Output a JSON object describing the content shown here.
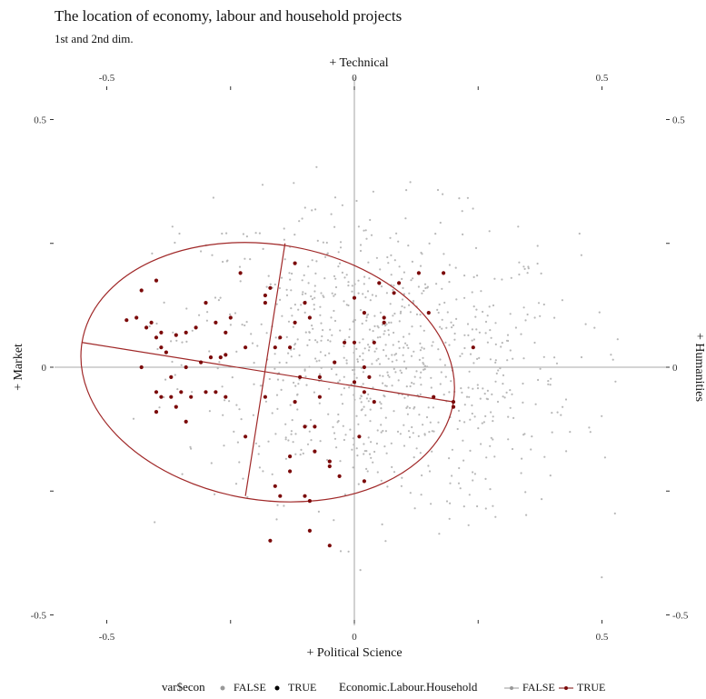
{
  "title": "The location of economy, labour and household projects",
  "subtitle": "1st and 2nd dim.",
  "legend": {
    "var_title": "var$econ",
    "var_items": [
      "FALSE",
      "TRUE"
    ],
    "ellipse_title": "Economic.Labour.Household",
    "ellipse_items": [
      "FALSE",
      "TRUE"
    ]
  },
  "colors": {
    "false_points": "#b8b8b8",
    "true_points": "#7b0a0a",
    "ellipse": "#a02828",
    "axis": "#8c8c8c"
  },
  "chart_data": {
    "type": "scatter",
    "title": "The location of economy, labour and household projects",
    "subtitle": "1st and 2nd dim.",
    "xlabel_bottom": "+ Political Science",
    "xlabel_top": "+ Technical",
    "ylabel_left": "+ Market",
    "ylabel_right": "+ Humanities",
    "xlim": [
      -0.55,
      0.6
    ],
    "ylim": [
      -0.52,
      0.52
    ],
    "x_ticks": [
      -0.5,
      -0.25,
      0,
      0.25,
      0.5
    ],
    "x_tick_labels": [
      "-0.5",
      "",
      "0",
      "",
      "0.5"
    ],
    "y_ticks": [
      -0.5,
      -0.25,
      0,
      0.25,
      0.5
    ],
    "y_tick_labels": [
      "-0.5",
      "",
      "0",
      "",
      "0.5"
    ],
    "grid": false,
    "legend_position": "bottom",
    "series": [
      {
        "name": "FALSE",
        "note_count": 900,
        "x_mean": 0.05,
        "y_mean": 0.05,
        "x_sd": 0.2,
        "y_sd": 0.15
      },
      {
        "name": "TRUE",
        "points": [
          [
            -0.43,
            0.155
          ],
          [
            -0.4,
            0.175
          ],
          [
            -0.46,
            0.095
          ],
          [
            -0.44,
            0.1
          ],
          [
            -0.42,
            0.08
          ],
          [
            -0.41,
            0.09
          ],
          [
            -0.39,
            0.07
          ],
          [
            -0.4,
            0.06
          ],
          [
            -0.39,
            0.04
          ],
          [
            -0.36,
            0.065
          ],
          [
            -0.34,
            0.07
          ],
          [
            -0.32,
            0.08
          ],
          [
            -0.3,
            0.13
          ],
          [
            -0.28,
            0.09
          ],
          [
            -0.26,
            0.07
          ],
          [
            -0.25,
            0.1
          ],
          [
            -0.23,
            0.19
          ],
          [
            -0.18,
            0.145
          ],
          [
            -0.18,
            0.13
          ],
          [
            -0.17,
            0.16
          ],
          [
            -0.12,
            0.21
          ],
          [
            -0.1,
            0.13
          ],
          [
            -0.12,
            0.09
          ],
          [
            -0.09,
            0.1
          ],
          [
            -0.15,
            0.06
          ],
          [
            -0.13,
            0.04
          ],
          [
            -0.16,
            0.04
          ],
          [
            -0.22,
            0.04
          ],
          [
            -0.26,
            0.025
          ],
          [
            -0.27,
            0.02
          ],
          [
            -0.29,
            0.02
          ],
          [
            -0.31,
            0.01
          ],
          [
            -0.38,
            0.03
          ],
          [
            -0.34,
            0.0
          ],
          [
            -0.37,
            -0.02
          ],
          [
            -0.4,
            -0.05
          ],
          [
            -0.39,
            -0.06
          ],
          [
            -0.37,
            -0.06
          ],
          [
            -0.35,
            -0.05
          ],
          [
            -0.33,
            -0.06
          ],
          [
            -0.3,
            -0.05
          ],
          [
            -0.28,
            -0.05
          ],
          [
            -0.26,
            -0.06
          ],
          [
            -0.4,
            -0.09
          ],
          [
            -0.36,
            -0.08
          ],
          [
            -0.34,
            -0.11
          ],
          [
            -0.43,
            0.0
          ],
          [
            -0.12,
            -0.07
          ],
          [
            -0.18,
            -0.06
          ],
          [
            -0.08,
            -0.12
          ],
          [
            -0.1,
            -0.12
          ],
          [
            -0.07,
            -0.06
          ],
          [
            -0.11,
            -0.02
          ],
          [
            -0.04,
            0.01
          ],
          [
            -0.07,
            -0.02
          ],
          [
            0.0,
            -0.03
          ],
          [
            0.03,
            -0.02
          ],
          [
            0.02,
            -0.05
          ],
          [
            0.04,
            -0.07
          ],
          [
            0.0,
            0.05
          ],
          [
            -0.02,
            0.05
          ],
          [
            0.0,
            0.14
          ],
          [
            0.05,
            0.17
          ],
          [
            0.09,
            0.17
          ],
          [
            0.13,
            0.19
          ],
          [
            0.18,
            0.19
          ],
          [
            0.08,
            0.15
          ],
          [
            0.02,
            0.11
          ],
          [
            0.06,
            0.1
          ],
          [
            0.15,
            0.11
          ],
          [
            0.06,
            0.09
          ],
          [
            0.04,
            0.05
          ],
          [
            0.2,
            -0.07
          ],
          [
            0.2,
            -0.08
          ],
          [
            0.16,
            -0.06
          ],
          [
            0.24,
            0.04
          ],
          [
            -0.22,
            -0.14
          ],
          [
            -0.08,
            -0.17
          ],
          [
            -0.05,
            -0.19
          ],
          [
            -0.13,
            -0.18
          ],
          [
            -0.13,
            -0.21
          ],
          [
            -0.05,
            -0.2
          ],
          [
            -0.03,
            -0.22
          ],
          [
            0.01,
            -0.14
          ],
          [
            0.02,
            -0.23
          ],
          [
            -0.16,
            -0.24
          ],
          [
            -0.15,
            -0.26
          ],
          [
            -0.1,
            -0.26
          ],
          [
            -0.09,
            -0.27
          ],
          [
            -0.17,
            -0.35
          ],
          [
            -0.09,
            -0.33
          ],
          [
            -0.05,
            -0.36
          ],
          [
            0.02,
            0.0
          ]
        ]
      }
    ],
    "ellipse_true": {
      "center": [
        -0.16,
        0.0
      ],
      "major_axis_end_left": [
        -0.55,
        0.05
      ],
      "major_axis_end_right": [
        0.2,
        -0.07
      ],
      "minor_axis_end_top": [
        -0.14,
        0.25
      ],
      "minor_axis_end_bottom": [
        -0.22,
        -0.26
      ]
    }
  }
}
